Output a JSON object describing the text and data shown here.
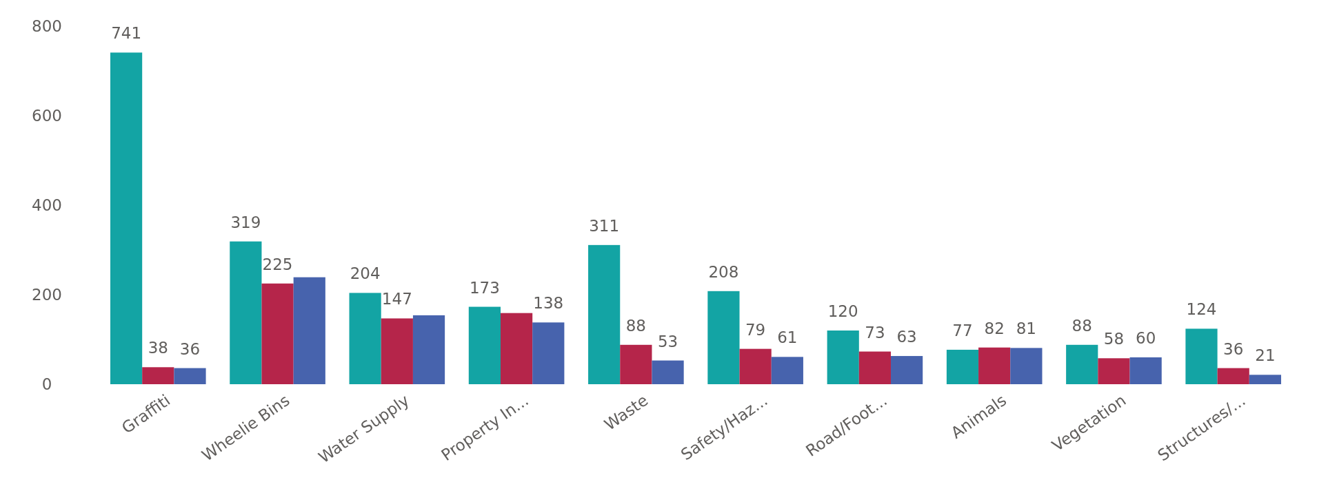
{
  "chart_data": {
    "type": "bar",
    "categories": [
      "Graffiti",
      "Wheelie Bins",
      "Water Supply",
      "Property In...",
      "Waste",
      "Safety/Haz...",
      "Road/Foot...",
      "Animals",
      "Vegetation",
      "Structures/..."
    ],
    "series": [
      {
        "color": "#13a4a4",
        "values": [
          741,
          319,
          204,
          173,
          311,
          208,
          120,
          77,
          88,
          124
        ],
        "value_labels": [
          "741",
          "319",
          "204",
          "173",
          "311",
          "208",
          "120",
          "77",
          "88",
          "124"
        ]
      },
      {
        "color": "#b5254a",
        "values": [
          38,
          225,
          147,
          159,
          88,
          79,
          73,
          82,
          58,
          36
        ],
        "value_labels": [
          "38",
          "225",
          "147",
          null,
          "88",
          "79",
          "73",
          "82",
          "58",
          "36"
        ]
      },
      {
        "color": "#4763ad",
        "values": [
          36,
          239,
          154,
          138,
          53,
          61,
          63,
          81,
          60,
          21
        ],
        "value_labels": [
          "36",
          null,
          null,
          "138",
          "53",
          "61",
          "63",
          "81",
          "60",
          "21"
        ]
      }
    ],
    "ylim": [
      0,
      800
    ],
    "yticks": [
      0,
      200,
      400,
      600,
      800
    ],
    "grid": false
  }
}
